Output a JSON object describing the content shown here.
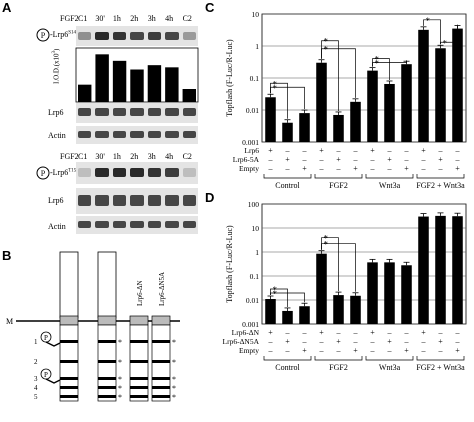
{
  "panel_a": {
    "letter": "A",
    "header_row": {
      "label": "FGF2",
      "lanes": [
        "C1",
        "30'",
        "1h",
        "2h",
        "3h",
        "4h",
        "C2"
      ]
    },
    "phospho1_label": "-Lrp6",
    "phospho1_site": "S1490",
    "p_symbol": "P",
    "lod_label": "I.O.D.(x10",
    "lod_exp": "3",
    "lod_suffix": ")",
    "lrp6_label": "Lrp6",
    "actin_label": "Actin",
    "phospho2_label": "-Lrp6",
    "phospho2_site": "T1572"
  },
  "panel_b": {
    "letter": "B",
    "constructs": [
      "Lrp6",
      "Lrp6-5A",
      "Lrp6-ΔN",
      "Lrp6-ΔN5A"
    ],
    "membrane_label": "M",
    "motifs": [
      "1",
      "2",
      "3",
      "4",
      "5"
    ],
    "p_symbol": "P",
    "asterisk": "*"
  },
  "panel_c": {
    "letter": "C"
  },
  "panel_d": {
    "letter": "D"
  },
  "chart_data": [
    {
      "type": "bar",
      "panel": "A",
      "categories": [
        "C1",
        "30'",
        "1h",
        "2h",
        "3h",
        "4h",
        "C2"
      ],
      "values": [
        4,
        11,
        9.5,
        7.5,
        8.5,
        8,
        3
      ],
      "ylabel": "I.O.D.(x10³)",
      "ylim": [
        0,
        12
      ],
      "grid": false
    },
    {
      "type": "bar",
      "panel": "C",
      "ylabel": "Topflash (F-Luc/R-Luc)",
      "yscale": "log",
      "ylim": [
        0.001,
        10
      ],
      "ytick_labels": [
        "10",
        "1",
        "0.1",
        "0.01",
        "0.001"
      ],
      "grid": true,
      "row_labels": [
        "Lrp6",
        "Lrp6-5A",
        "Empty"
      ],
      "group_labels": [
        "Control",
        "FGF2",
        "Wnt3a",
        "FGF2 + Wnt3a"
      ],
      "marks": [
        [
          "+",
          "–",
          "–"
        ],
        [
          "–",
          "+",
          "–"
        ],
        [
          "–",
          "–",
          "+"
        ]
      ],
      "values": [
        0.025,
        0.004,
        0.008,
        0.3,
        0.007,
        0.018,
        0.17,
        0.065,
        0.27,
        3.2,
        0.85,
        3.5
      ],
      "significance": "*"
    },
    {
      "type": "bar",
      "panel": "D",
      "ylabel": "Topflash (F-Luc/R-Luc)",
      "yscale": "log",
      "ylim": [
        0.001,
        100
      ],
      "ytick_labels": [
        "100",
        "10",
        "1",
        "0.1",
        "0.01",
        "0.001"
      ],
      "grid": true,
      "row_labels": [
        "Lrp6-ΔN",
        "Lrp6-ΔN5A",
        "Empty"
      ],
      "group_labels": [
        "Control",
        "FGF2",
        "Wnt3a",
        "FGF2 + Wnt3a"
      ],
      "marks": [
        [
          "+",
          "–",
          "–"
        ],
        [
          "–",
          "+",
          "–"
        ],
        [
          "–",
          "–",
          "+"
        ]
      ],
      "values": [
        0.011,
        0.0035,
        0.0055,
        0.85,
        0.016,
        0.015,
        0.37,
        0.37,
        0.28,
        30,
        32,
        31
      ],
      "significance": "*"
    }
  ]
}
